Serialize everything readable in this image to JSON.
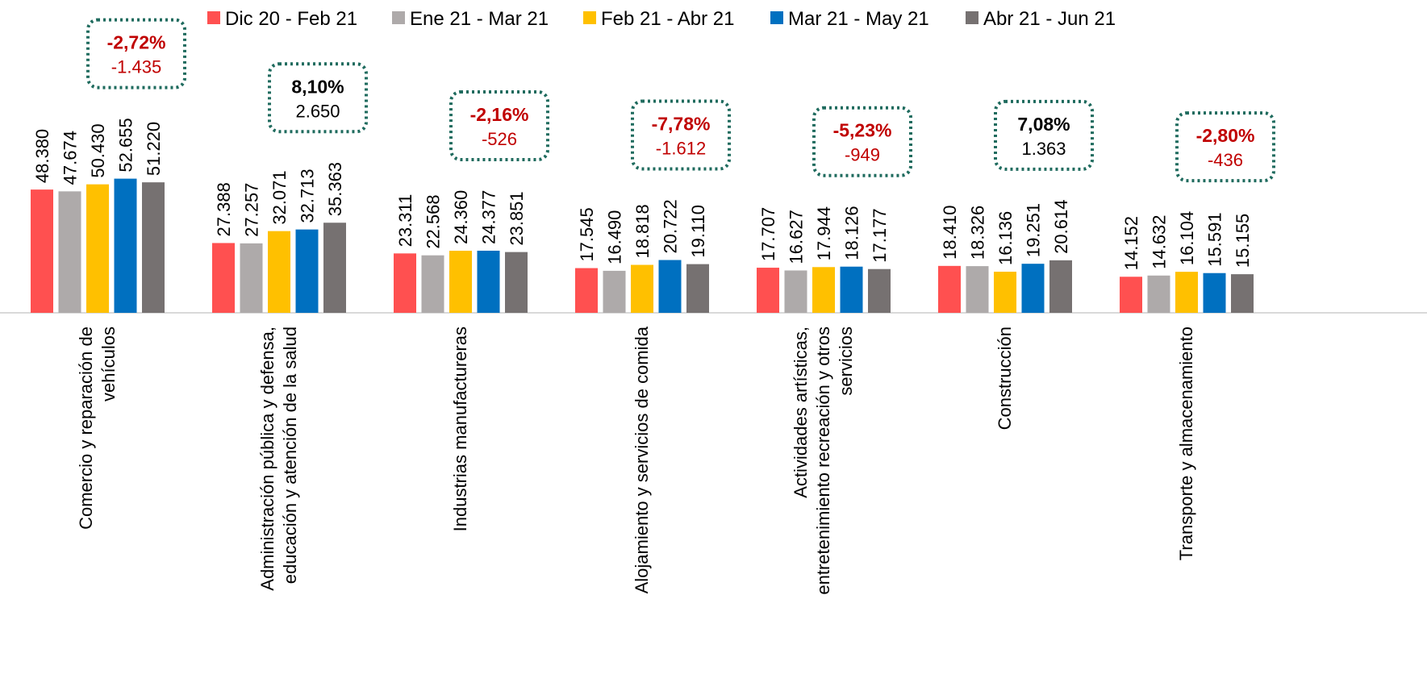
{
  "chart_data": {
    "type": "bar",
    "categories": [
      "Comercio y reparación de vehículos",
      "Administración pública y defensa, educación y atención de la salud",
      "Industrias manufactureras",
      "Alojamiento y servicios de comida",
      "Actividades artísticas, entretenimiento recreación y otros servicios",
      "Construcción",
      "Transporte y almacenamiento"
    ],
    "series": [
      {
        "name": "Dic 20 - Feb 21",
        "color": "#ff5050",
        "values": [
          48380,
          27388,
          23311,
          17545,
          17707,
          18410,
          14152
        ],
        "value_labels": [
          "48.380",
          "27.388",
          "23.311",
          "17.545",
          "17.707",
          "18.410",
          "14.152"
        ]
      },
      {
        "name": "Ene 21 - Mar 21",
        "color": "#aeaaaa",
        "values": [
          47674,
          27257,
          22568,
          16490,
          16627,
          18326,
          14632
        ],
        "value_labels": [
          "47.674",
          "27.257",
          "22.568",
          "16.490",
          "16.627",
          "18.326",
          "14.632"
        ]
      },
      {
        "name": "Feb 21 - Abr 21",
        "color": "#ffc000",
        "values": [
          50430,
          32071,
          24360,
          18818,
          17944,
          16136,
          16104
        ],
        "value_labels": [
          "50.430",
          "32.071",
          "24.360",
          "18.818",
          "17.944",
          "16.136",
          "16.104"
        ]
      },
      {
        "name": "Mar 21 - May 21",
        "color": "#0070c0",
        "values": [
          52655,
          32713,
          24377,
          20722,
          18126,
          19251,
          15591
        ],
        "value_labels": [
          "52.655",
          "32.713",
          "24.377",
          "20.722",
          "18.126",
          "19.251",
          "15.591"
        ]
      },
      {
        "name": "Abr 21 - Jun 21",
        "color": "#767171",
        "values": [
          51220,
          35363,
          23851,
          19110,
          17177,
          20614,
          15155
        ],
        "value_labels": [
          "51.220",
          "35.363",
          "23.851",
          "19.110",
          "17.177",
          "20.614",
          "15.155"
        ]
      }
    ],
    "annotations": [
      {
        "text": "-2,72%",
        "subtext": "-1.435",
        "color": "#c00000"
      },
      {
        "text": "8,10%",
        "subtext": "2.650",
        "color": "#000000"
      },
      {
        "text": "-2,16%",
        "subtext": "-526",
        "color": "#c00000"
      },
      {
        "text": "-7,78%",
        "subtext": "-1.612",
        "color": "#c00000"
      },
      {
        "text": "-5,23%",
        "subtext": "-949",
        "color": "#c00000"
      },
      {
        "text": "7,08%",
        "subtext": "1.363",
        "color": "#000000"
      },
      {
        "text": "-2,80%",
        "subtext": "-436",
        "color": "#c00000"
      }
    ],
    "ylim": [
      0,
      100000
    ],
    "grid": false
  }
}
